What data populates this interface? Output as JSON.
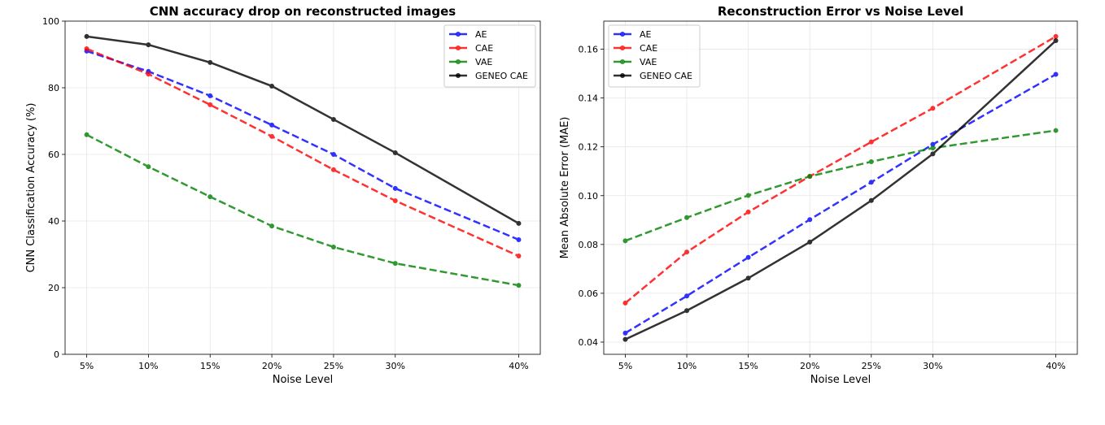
{
  "chart_data": [
    {
      "type": "line",
      "title": "CNN accuracy drop on reconstructed images",
      "xlabel": "Noise Level",
      "ylabel": "CNN Classification Accuracy (%)",
      "x": [
        5,
        10,
        15,
        20,
        25,
        30,
        40
      ],
      "xtick_labels": [
        "5%",
        "10%",
        "15%",
        "20%",
        "25%",
        "30%",
        "40%"
      ],
      "ylim": [
        0,
        100
      ],
      "yticks": [
        0,
        20,
        40,
        60,
        80,
        100
      ],
      "ytick_labels": [
        "0",
        "20",
        "40",
        "60",
        "80",
        "100"
      ],
      "grid": true,
      "legend_position": "top-right",
      "series": [
        {
          "name": "AE",
          "color": "#0000ff",
          "style": "dashed",
          "values": [
            91.0,
            84.9,
            77.6,
            68.8,
            60.0,
            49.8,
            34.4
          ]
        },
        {
          "name": "CAE",
          "color": "#ff0000",
          "style": "dashed",
          "values": [
            91.7,
            84.1,
            74.9,
            65.4,
            55.4,
            46.1,
            29.5
          ]
        },
        {
          "name": "VAE",
          "color": "#008000",
          "style": "dashed",
          "values": [
            65.9,
            56.3,
            47.3,
            38.5,
            32.2,
            27.3,
            20.7
          ]
        },
        {
          "name": "GENEO CAE",
          "color": "#000000",
          "style": "solid",
          "values": [
            95.4,
            92.9,
            87.6,
            80.5,
            70.5,
            60.5,
            39.3
          ]
        }
      ]
    },
    {
      "type": "line",
      "title": "Reconstruction Error vs Noise Level",
      "xlabel": "Noise Level",
      "ylabel": "Mean Absolute Error (MAE)",
      "x": [
        5,
        10,
        15,
        20,
        25,
        30,
        40
      ],
      "xtick_labels": [
        "5%",
        "10%",
        "15%",
        "20%",
        "25%",
        "30%",
        "40%"
      ],
      "ylim": [
        0.035,
        0.1715
      ],
      "yticks": [
        0.04,
        0.06,
        0.08,
        0.1,
        0.12,
        0.14,
        0.16
      ],
      "ytick_labels": [
        "0.04",
        "0.06",
        "0.08",
        "0.10",
        "0.12",
        "0.14",
        "0.16"
      ],
      "grid": true,
      "legend_position": "top-left",
      "series": [
        {
          "name": "AE",
          "color": "#0000ff",
          "style": "dashed",
          "values": [
            0.0437,
            0.0589,
            0.0747,
            0.0902,
            0.1055,
            0.121,
            0.1497
          ]
        },
        {
          "name": "CAE",
          "color": "#ff0000",
          "style": "dashed",
          "values": [
            0.056,
            0.0769,
            0.0933,
            0.1079,
            0.122,
            0.1358,
            0.1652
          ]
        },
        {
          "name": "VAE",
          "color": "#008000",
          "style": "dashed",
          "values": [
            0.0815,
            0.091,
            0.1001,
            0.1079,
            0.1139,
            0.1195,
            0.1267
          ]
        },
        {
          "name": "GENEO CAE",
          "color": "#000000",
          "style": "solid",
          "values": [
            0.0411,
            0.0529,
            0.0662,
            0.081,
            0.098,
            0.1171,
            0.1635
          ]
        }
      ]
    }
  ]
}
